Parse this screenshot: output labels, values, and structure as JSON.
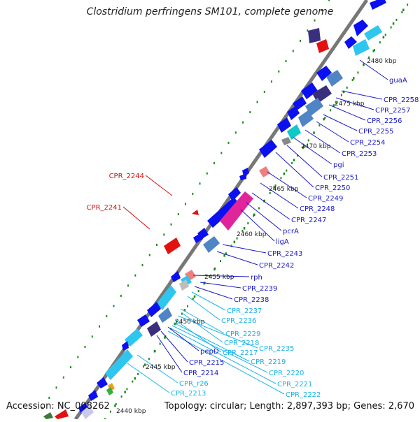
{
  "title": "Clostridium perfringens SM101, complete genome",
  "footer": {
    "accession": "Accession: NC_008262",
    "stats": "Topology: circular; Length: 2,897,393 bp; Genes: 2,670"
  },
  "colors": {
    "blue_gene": "#0b10f0",
    "cyan_gene": "#2ec6ee",
    "steel_gene": "#4f85c4",
    "navy_gene": "#3a2f7c",
    "red_gene": "#e31010",
    "magenta_gene": "#e0249a",
    "pink_gene": "#ef7f7f",
    "teal_gene": "#10c8c8",
    "gray_gene": "#888888",
    "label_blue": "#1a1ac8",
    "label_cyan": "#18b4e8",
    "label_red": "#d81010",
    "tick_green": "#1a8a1a"
  },
  "kbp_ticks": [
    "2480 kbp",
    "2475 kbp",
    "2470 kbp",
    "2465 kbp",
    "2460 kbp",
    "2455 kbp",
    "2450 kbp",
    "2445 kbp",
    "2440 kbp"
  ],
  "gene_labels": [
    {
      "text": "guaA",
      "color": "blue"
    },
    {
      "text": "CPR_2258",
      "color": "blue"
    },
    {
      "text": "CPR_2257",
      "color": "blue"
    },
    {
      "text": "CPR_2256",
      "color": "blue"
    },
    {
      "text": "CPR_2255",
      "color": "blue"
    },
    {
      "text": "CPR_2254",
      "color": "blue"
    },
    {
      "text": "CPR_2253",
      "color": "blue"
    },
    {
      "text": "pgi",
      "color": "blue"
    },
    {
      "text": "CPR_2251",
      "color": "blue"
    },
    {
      "text": "CPR_2250",
      "color": "blue"
    },
    {
      "text": "CPR_2249",
      "color": "blue"
    },
    {
      "text": "CPR_2248",
      "color": "blue"
    },
    {
      "text": "CPR_2247",
      "color": "blue"
    },
    {
      "text": "pcrA",
      "color": "blue"
    },
    {
      "text": "ligA",
      "color": "blue"
    },
    {
      "text": "CPR_2243",
      "color": "blue"
    },
    {
      "text": "CPR_2242",
      "color": "blue"
    },
    {
      "text": "rph",
      "color": "blue"
    },
    {
      "text": "CPR_2239",
      "color": "blue"
    },
    {
      "text": "CPR_2238",
      "color": "blue"
    },
    {
      "text": "CPR_2237",
      "color": "cyan"
    },
    {
      "text": "CPR_2236",
      "color": "cyan"
    },
    {
      "text": "CPR_2229",
      "color": "cyan"
    },
    {
      "text": "CPR_2218",
      "color": "cyan"
    },
    {
      "text": "CPR_2235",
      "color": "cyan"
    },
    {
      "text": "CPR_2217",
      "color": "cyan"
    },
    {
      "text": "CPR_2219",
      "color": "cyan"
    },
    {
      "text": "CPR_2220",
      "color": "cyan"
    },
    {
      "text": "CPR_2221",
      "color": "cyan"
    },
    {
      "text": "CPR_2222",
      "color": "cyan"
    },
    {
      "text": "pepD",
      "color": "blue"
    },
    {
      "text": "CPR_2215",
      "color": "blue"
    },
    {
      "text": "CPR_2214",
      "color": "blue"
    },
    {
      "text": "CPR_r26",
      "color": "cyan"
    },
    {
      "text": "CPR_2213",
      "color": "cyan"
    },
    {
      "text": "CPR_2244",
      "color": "red"
    },
    {
      "text": "CPR_2241",
      "color": "red"
    }
  ]
}
